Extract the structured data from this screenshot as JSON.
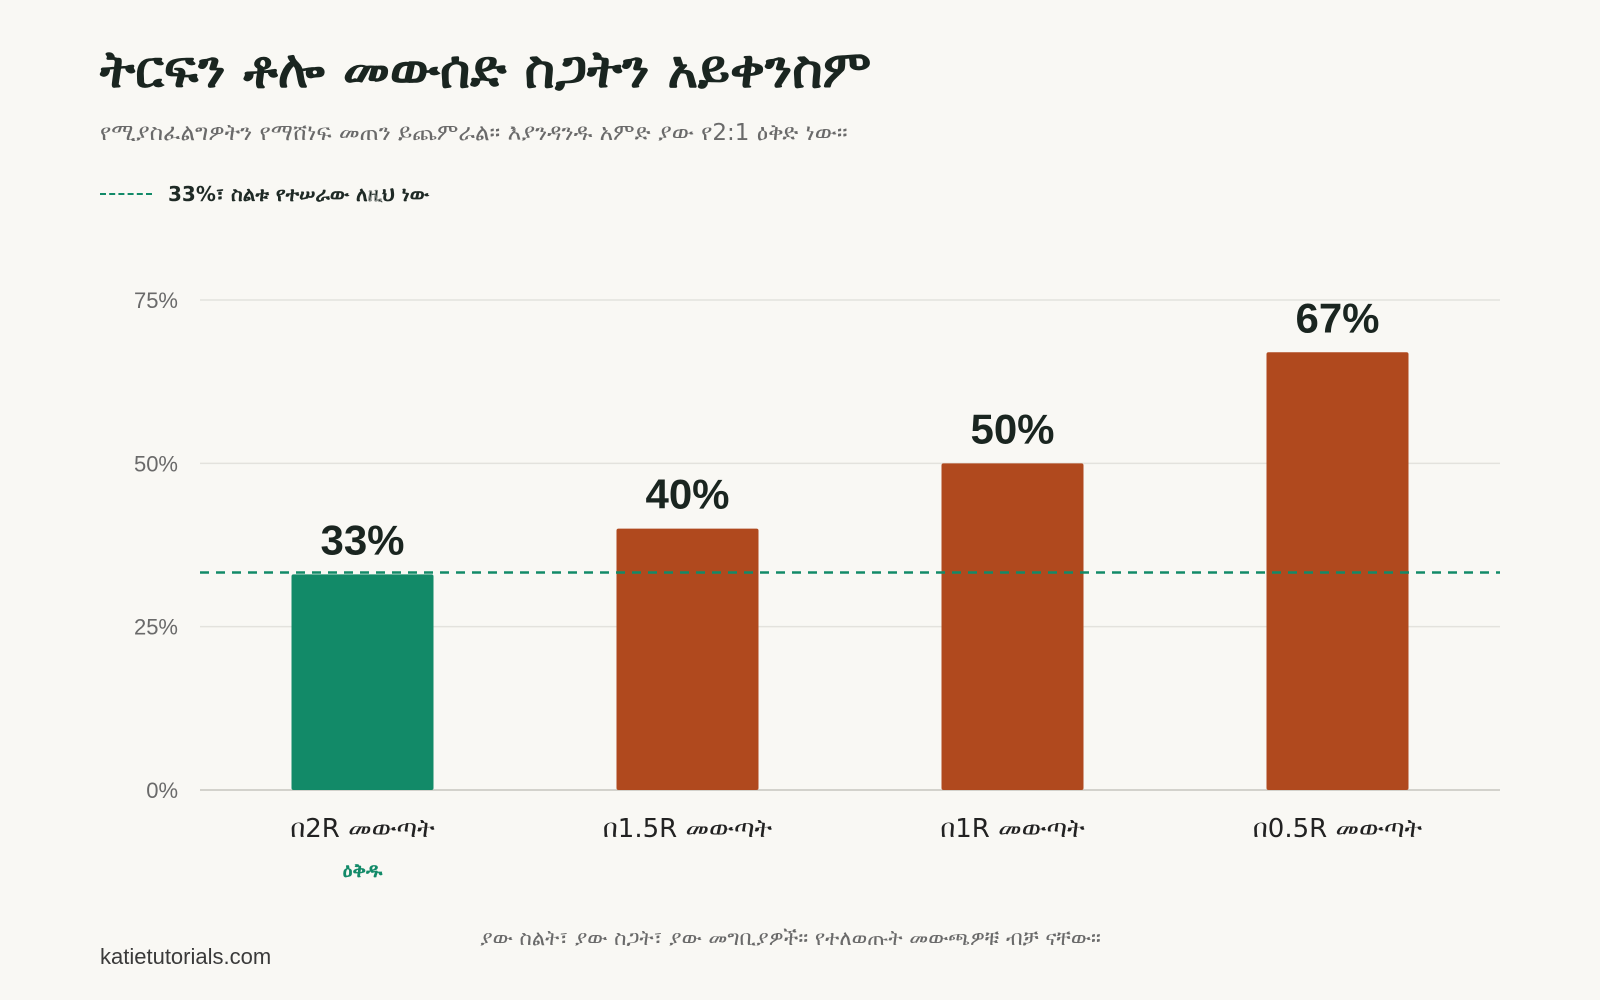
{
  "title": "ትርፍን ቶሎ መውሰድ ስጋትን አይቀንስም",
  "subtitle": "የሚያስፈልግዎትን የማሸነፍ መጠን ይጨምራል። እያንዳንዱ አምድ ያው የ2:1 ዕቅድ ነው።",
  "legend": {
    "label": "33%፣ ስልቱ የተሠራው ለዚህ ነው"
  },
  "site": "katietutorials.com",
  "footnote": "ያው ስልት፣ ያው ስጋት፣ ያው መግቢያዎች። የተለወጡት መውጫዎቹ ብቻ ናቸው።",
  "colors": {
    "plan": "#128a68",
    "other": "#b0491e",
    "reference": "#128a68",
    "grid": "#e3e2dd",
    "text": "#1a2520",
    "muted": "#6a6a6a"
  },
  "chart_data": {
    "type": "bar",
    "categories": [
      "በ2R መውጣት",
      "በ1.5R መውጣት",
      "በ1R መውጣት",
      "በ0.5R መውጣት"
    ],
    "values": [
      33,
      40,
      50,
      67
    ],
    "value_labels": [
      "33%",
      "40%",
      "50%",
      "67%"
    ],
    "category_notes": [
      "ዕቅዱ",
      "",
      "",
      ""
    ],
    "highlight_index": 0,
    "reference_line": {
      "value": 33.3,
      "style": "dashed"
    },
    "yticks": [
      0,
      25,
      50,
      75
    ],
    "ytick_labels": [
      "0%",
      "25%",
      "50%",
      "75%"
    ],
    "ylim": [
      0,
      75
    ],
    "grid": true,
    "legend_position": "top-left"
  }
}
